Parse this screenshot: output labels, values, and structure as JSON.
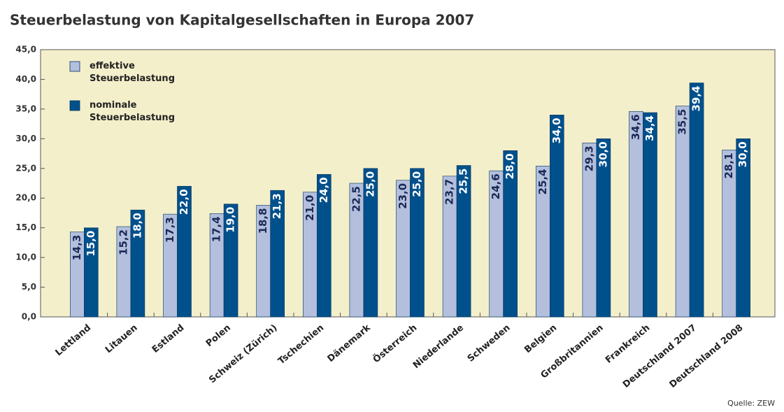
{
  "chart_data": {
    "type": "bar",
    "title": "Steuerbelastung von Kapitalgesellschaften in Europa 2007",
    "source": "Quelle: ZEW",
    "categories": [
      "Lettland",
      "Litauen",
      "Estland",
      "Polen",
      "Schweiz (Zürich)",
      "Tschechien",
      "Dänemark",
      "Österreich",
      "Niederlande",
      "Schweden",
      "Belgien",
      "Großbritannien",
      "Frankreich",
      "Deutschland 2007",
      "Deutschland 2008"
    ],
    "series": [
      {
        "name": "effektive Steuerbelastung",
        "color": "#b3bfdd",
        "values": [
          14.3,
          15.2,
          17.3,
          17.4,
          18.8,
          21.0,
          22.5,
          23.0,
          23.7,
          24.6,
          25.4,
          29.3,
          34.6,
          35.5,
          28.1
        ],
        "value_labels": [
          "14,3",
          "15,2",
          "17,3",
          "17,4",
          "18,8",
          "21,0",
          "22,5",
          "23,0",
          "23,7",
          "24,6",
          "25,4",
          "29,3",
          "34,6",
          "35,5",
          "28,1"
        ]
      },
      {
        "name": "nominale Steuerbelastung",
        "color": "#00508c",
        "values": [
          15.0,
          18.0,
          22.0,
          19.0,
          21.3,
          24.0,
          25.0,
          25.0,
          25.5,
          28.0,
          34.0,
          30.0,
          34.4,
          39.4,
          30.0
        ],
        "value_labels": [
          "15,0",
          "18,0",
          "22,0",
          "19,0",
          "21,3",
          "24,0",
          "25,0",
          "25,0",
          "25,5",
          "28,0",
          "34,0",
          "30,0",
          "34,4",
          "39,4",
          "30,0"
        ]
      }
    ],
    "ylim": [
      0,
      45
    ],
    "yticks": [
      {
        "value": 0,
        "label": "0,0"
      },
      {
        "value": 5,
        "label": "5,0"
      },
      {
        "value": 10,
        "label": "10,0"
      },
      {
        "value": 15,
        "label": "15,0"
      },
      {
        "value": 20,
        "label": "20,0"
      },
      {
        "value": 25,
        "label": "25,0"
      },
      {
        "value": 30,
        "label": "30,0"
      },
      {
        "value": 35,
        "label": "35,0"
      },
      {
        "value": 40,
        "label": "40,0"
      },
      {
        "value": 45,
        "label": "45,0"
      }
    ],
    "grid": false,
    "legend": "top-left"
  }
}
